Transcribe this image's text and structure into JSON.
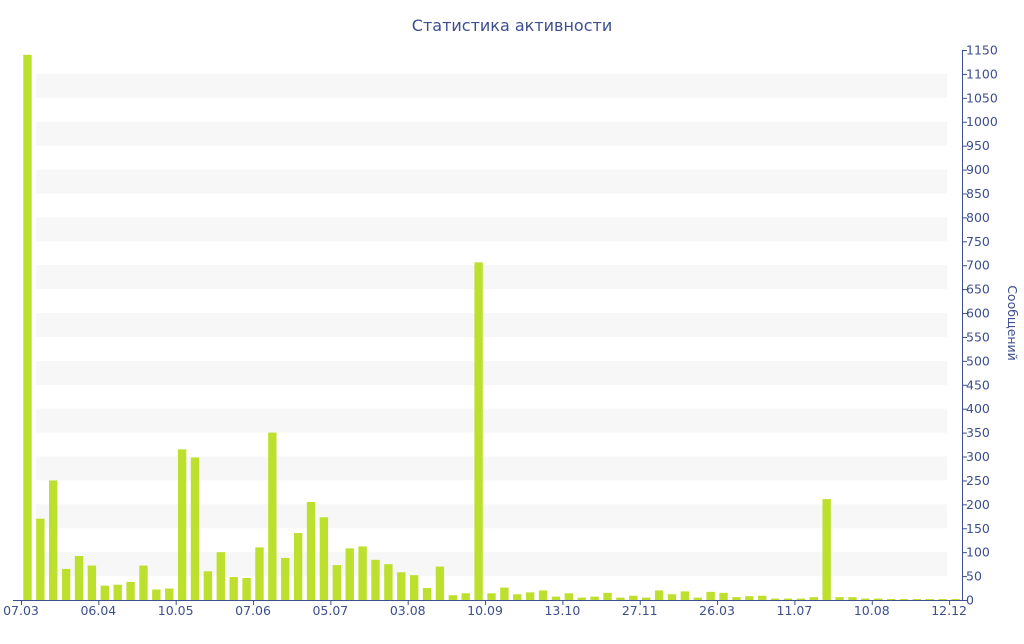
{
  "chart_data": {
    "type": "bar",
    "title": "Статистика активности",
    "xlabel": "",
    "ylabel": "Сообщений",
    "ylim": [
      0,
      1150
    ],
    "y_axis_position": "right",
    "y_ticks": [
      0,
      50,
      100,
      150,
      200,
      250,
      300,
      350,
      400,
      450,
      500,
      550,
      600,
      650,
      700,
      750,
      800,
      850,
      900,
      950,
      1000,
      1050,
      1100,
      1150
    ],
    "x_tick_labels": [
      {
        "index": 0,
        "label": "07.03"
      },
      {
        "index": 6,
        "label": "06.04"
      },
      {
        "index": 12,
        "label": "10.05"
      },
      {
        "index": 18,
        "label": "07.06"
      },
      {
        "index": 24,
        "label": "05.07"
      },
      {
        "index": 30,
        "label": "03.08"
      },
      {
        "index": 36,
        "label": "10.09"
      },
      {
        "index": 42,
        "label": "13.10"
      },
      {
        "index": 48,
        "label": "27.11"
      },
      {
        "index": 54,
        "label": "26.03"
      },
      {
        "index": 60,
        "label": "11.07"
      },
      {
        "index": 66,
        "label": "10.08"
      },
      {
        "index": 72,
        "label": "12.12"
      }
    ],
    "values": [
      1140,
      170,
      250,
      65,
      92,
      72,
      30,
      32,
      38,
      72,
      22,
      24,
      315,
      298,
      60,
      100,
      48,
      46,
      110,
      350,
      88,
      140,
      205,
      173,
      73,
      108,
      112,
      84,
      75,
      58,
      52,
      25,
      70,
      10,
      14,
      706,
      14,
      26,
      12,
      16,
      20,
      7,
      14,
      5,
      7,
      15,
      5,
      9,
      5,
      20,
      12,
      18,
      5,
      17,
      15,
      6,
      8,
      9,
      3,
      3,
      3,
      6,
      211,
      6,
      6,
      3,
      3,
      2,
      2,
      2,
      2,
      2,
      2
    ],
    "colors": {
      "bar": "#bde02f",
      "text": "#3d4f8c",
      "axis": "#3d4f8c",
      "band": "#f7f7f7"
    },
    "grid": "horizontal-bands"
  }
}
